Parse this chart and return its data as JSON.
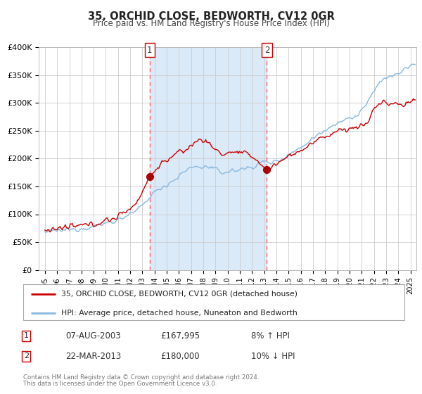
{
  "title": "35, ORCHID CLOSE, BEDWORTH, CV12 0GR",
  "subtitle": "Price paid vs. HM Land Registry's House Price Index (HPI)",
  "ylim": [
    0,
    400000
  ],
  "yticks": [
    0,
    50000,
    100000,
    150000,
    200000,
    250000,
    300000,
    350000,
    400000
  ],
  "ytick_labels": [
    "£0",
    "£50K",
    "£100K",
    "£150K",
    "£200K",
    "£250K",
    "£300K",
    "£350K",
    "£400K"
  ],
  "xlim_start": 1994.5,
  "xlim_end": 2025.5,
  "xtick_years": [
    1995,
    1996,
    1997,
    1998,
    1999,
    2000,
    2001,
    2002,
    2003,
    2004,
    2005,
    2006,
    2007,
    2008,
    2009,
    2010,
    2011,
    2012,
    2013,
    2014,
    2015,
    2016,
    2017,
    2018,
    2019,
    2020,
    2021,
    2022,
    2023,
    2024,
    2025
  ],
  "hpi_color": "#88b8e0",
  "price_color": "#cc0000",
  "marker_color": "#aa0000",
  "vline_color": "#ff6666",
  "shade_color": "#daeaf8",
  "event1_x": 2003.6,
  "event1_y": 167995,
  "event2_x": 2013.22,
  "event2_y": 180000,
  "legend_line1": "35, ORCHID CLOSE, BEDWORTH, CV12 0GR (detached house)",
  "legend_line2": "HPI: Average price, detached house, Nuneaton and Bedworth",
  "event1_date": "07-AUG-2003",
  "event1_price": "£167,995",
  "event1_note": "8% ↑ HPI",
  "event2_date": "22-MAR-2013",
  "event2_price": "£180,000",
  "event2_note": "10% ↓ HPI",
  "footer1": "Contains HM Land Registry data © Crown copyright and database right 2024.",
  "footer2": "This data is licensed under the Open Government Licence v3.0.",
  "background_color": "#ffffff",
  "grid_color": "#cccccc"
}
